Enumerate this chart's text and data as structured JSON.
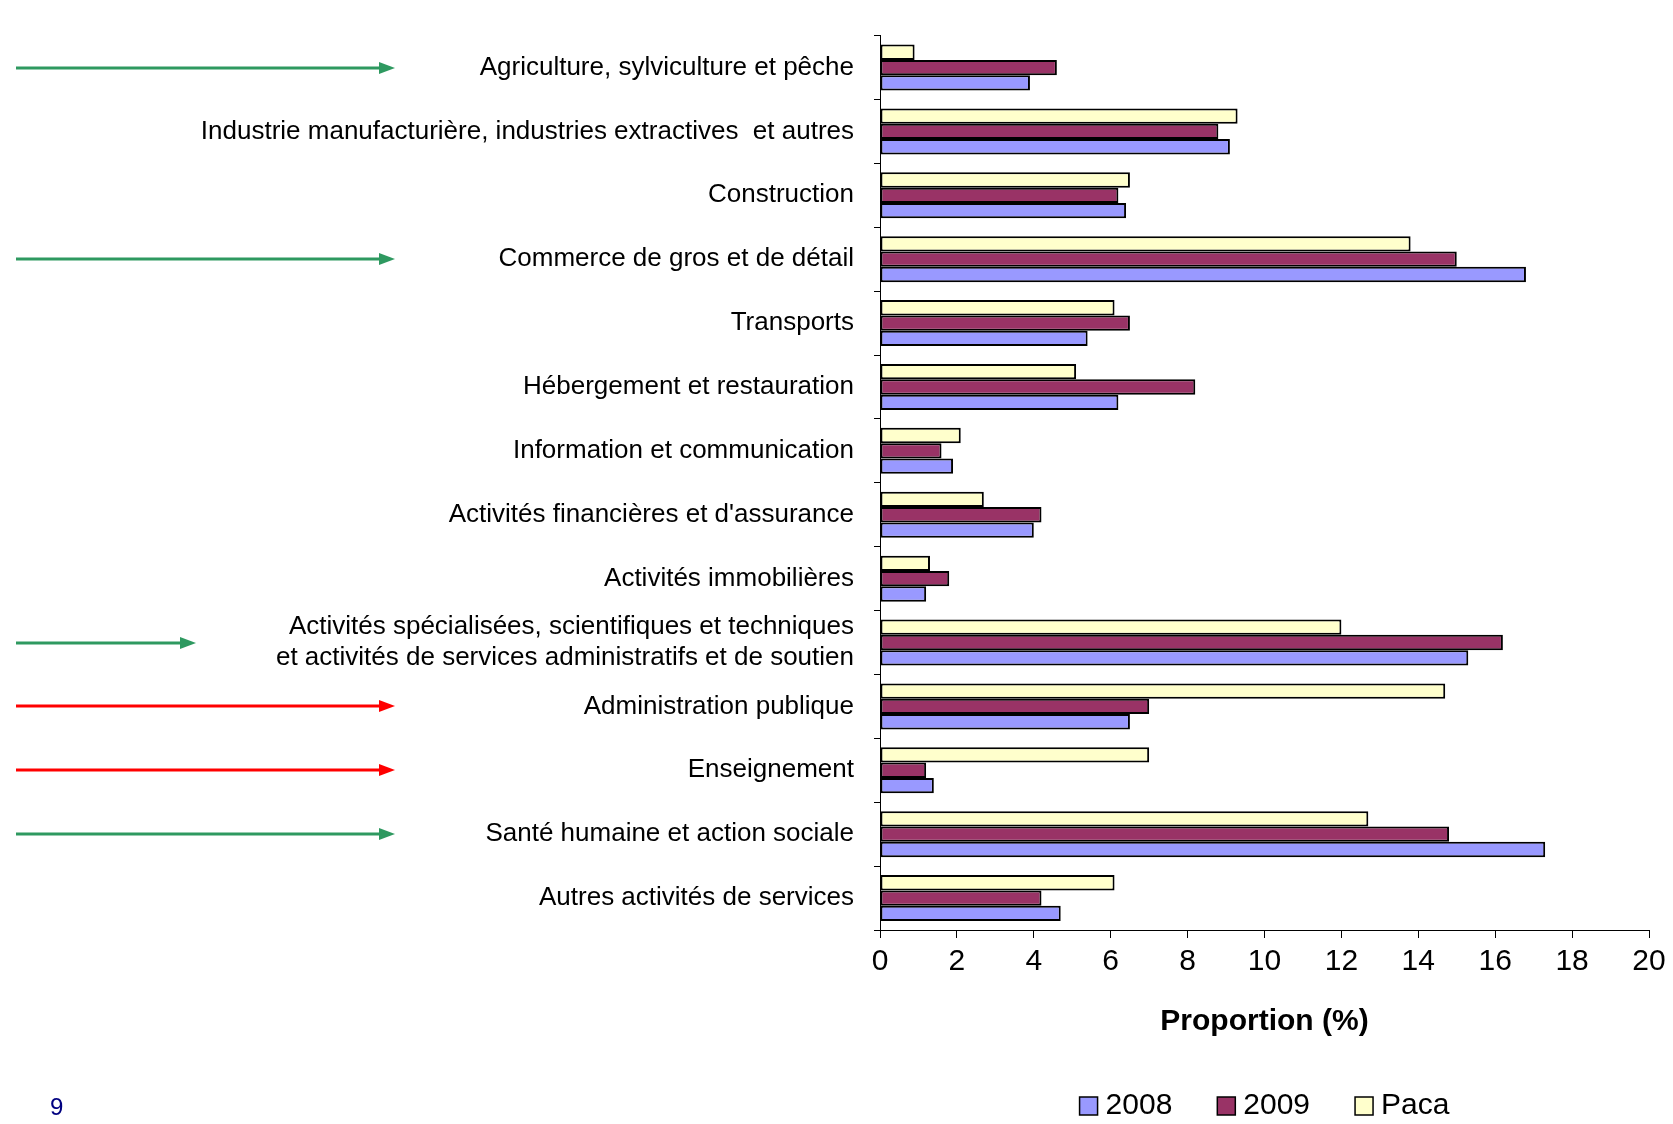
{
  "chart_data": {
    "type": "bar",
    "orientation": "horizontal",
    "xlabel": "Proportion (%)",
    "categories": [
      "Agriculture, sylviculture et pêche",
      "Industrie manufacturière, industries extractives  et autres",
      "Construction",
      "Commerce de gros et de détail",
      "Transports",
      "Hébergement et restauration",
      "Information et communication",
      "Activités financières et d'assurance",
      "Activités immobilières",
      "Activités spécialisées, scientifiques et techniques et activités de services administratifs et de soutien",
      "Administration publique",
      "Enseignement",
      "Santé humaine et action sociale",
      "Autres activités de services"
    ],
    "series": [
      {
        "name": "2008",
        "color": "#9999ff",
        "values": [
          3.9,
          9.1,
          6.4,
          16.8,
          5.4,
          6.2,
          1.9,
          4.0,
          1.2,
          15.3,
          6.5,
          1.4,
          17.3,
          4.7
        ]
      },
      {
        "name": "2009",
        "color": "#993366",
        "values": [
          4.6,
          8.8,
          6.2,
          15.0,
          6.5,
          8.2,
          1.6,
          4.2,
          1.8,
          16.2,
          7.0,
          1.2,
          14.8,
          4.2
        ]
      },
      {
        "name": "Paca",
        "color": "#ffffcc",
        "values": [
          0.9,
          9.3,
          6.5,
          13.8,
          6.1,
          5.1,
          2.1,
          2.7,
          1.3,
          12.0,
          14.7,
          7.0,
          12.7,
          6.1
        ]
      }
    ],
    "xlim": [
      0,
      20
    ],
    "xticks": [
      0,
      2,
      4,
      6,
      8,
      10,
      12,
      14,
      16,
      18,
      20
    ],
    "legend": "bottom",
    "annotations": [
      "9"
    ]
  }
}
